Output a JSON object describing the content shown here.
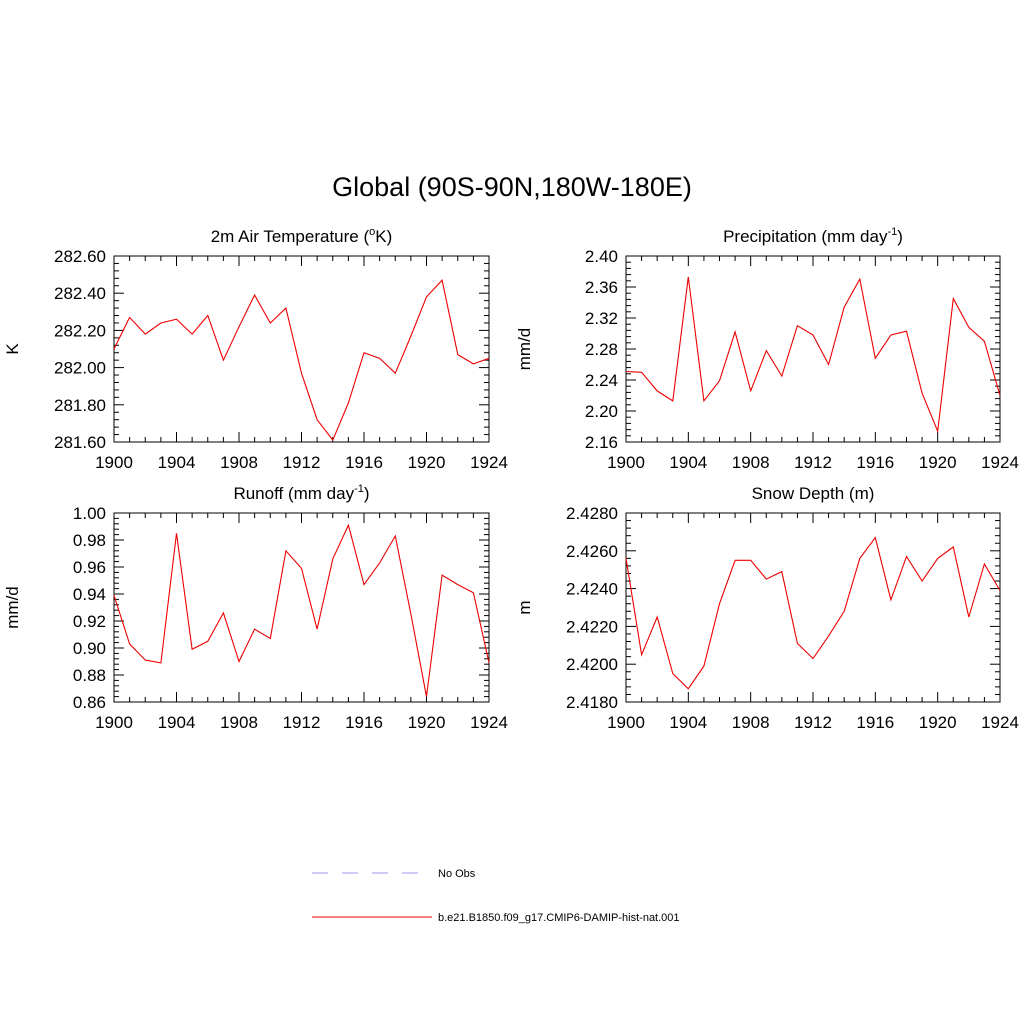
{
  "title": "Global (90S-90N,180W-180E)",
  "legend": [
    {
      "label": "No Obs",
      "color": "#9999ee",
      "dash": true
    },
    {
      "label": "b.e21.B1850.f09_g17.CMIP6-DAMIP-hist-nat.001",
      "color": "#ee0000",
      "dash": false
    }
  ],
  "chart_data": [
    {
      "type": "line",
      "title_main": "2m Air Temperature (",
      "title_sup": "o",
      "title_after": "K)",
      "ylabel": "K",
      "xlim": [
        1900,
        1924
      ],
      "ylim": [
        281.6,
        282.6
      ],
      "xticks": [
        1900,
        1904,
        1908,
        1912,
        1916,
        1920,
        1924
      ],
      "yticks": [
        "281.60",
        "281.80",
        "282.00",
        "282.20",
        "282.40",
        "282.60"
      ],
      "series": [
        {
          "color": "#ee0000",
          "x": [
            1900,
            1901,
            1902,
            1903,
            1904,
            1905,
            1906,
            1907,
            1908,
            1909,
            1910,
            1911,
            1912,
            1913,
            1914,
            1915,
            1916,
            1917,
            1918,
            1919,
            1920,
            1921,
            1922,
            1923,
            1924
          ],
          "values": [
            282.1,
            282.27,
            282.18,
            282.24,
            282.26,
            282.18,
            282.28,
            282.04,
            282.22,
            282.39,
            282.24,
            282.32,
            281.97,
            281.72,
            281.61,
            281.81,
            282.08,
            282.05,
            281.97,
            282.17,
            282.38,
            282.47,
            282.07,
            282.02,
            282.05
          ]
        }
      ]
    },
    {
      "type": "line",
      "title_main": "Precipitation (mm day",
      "title_sup": "-1",
      "title_after": ")",
      "ylabel": "mm/d",
      "xlim": [
        1900,
        1924
      ],
      "ylim": [
        2.16,
        2.4
      ],
      "xticks": [
        1900,
        1904,
        1908,
        1912,
        1916,
        1920,
        1924
      ],
      "yticks": [
        "2.16",
        "2.20",
        "2.24",
        "2.28",
        "2.32",
        "2.36",
        "2.40"
      ],
      "series": [
        {
          "color": "#ee0000",
          "x": [
            1900,
            1901,
            1902,
            1903,
            1904,
            1905,
            1906,
            1907,
            1908,
            1909,
            1910,
            1911,
            1912,
            1913,
            1914,
            1915,
            1916,
            1917,
            1918,
            1919,
            1920,
            1921,
            1922,
            1923,
            1924
          ],
          "values": [
            2.251,
            2.25,
            2.226,
            2.213,
            2.373,
            2.213,
            2.239,
            2.302,
            2.226,
            2.278,
            2.245,
            2.31,
            2.298,
            2.26,
            2.334,
            2.37,
            2.268,
            2.298,
            2.303,
            2.223,
            2.174,
            2.345,
            2.308,
            2.29,
            2.22
          ]
        }
      ]
    },
    {
      "type": "line",
      "title_main": "Runoff (mm day",
      "title_sup": "-1",
      "title_after": ")",
      "ylabel": "mm/d",
      "xlim": [
        1900,
        1924
      ],
      "ylim": [
        0.86,
        1.0
      ],
      "xticks": [
        1900,
        1904,
        1908,
        1912,
        1916,
        1920,
        1924
      ],
      "yticks": [
        "0.86",
        "0.88",
        "0.90",
        "0.92",
        "0.94",
        "0.96",
        "0.98",
        "1.00"
      ],
      "series": [
        {
          "color": "#ee0000",
          "x": [
            1900,
            1901,
            1902,
            1903,
            1904,
            1905,
            1906,
            1907,
            1908,
            1909,
            1910,
            1911,
            1912,
            1913,
            1914,
            1915,
            1916,
            1917,
            1918,
            1919,
            1920,
            1921,
            1922,
            1923,
            1924
          ],
          "values": [
            0.939,
            0.903,
            0.891,
            0.889,
            0.985,
            0.899,
            0.905,
            0.926,
            0.89,
            0.914,
            0.907,
            0.972,
            0.959,
            0.914,
            0.966,
            0.991,
            0.947,
            0.963,
            0.983,
            0.925,
            0.864,
            0.954,
            0.947,
            0.941,
            0.889
          ]
        }
      ]
    },
    {
      "type": "line",
      "title_main": "Snow Depth (m)",
      "title_sup": "",
      "title_after": "",
      "ylabel": "m",
      "xlim": [
        1900,
        1924
      ],
      "ylim": [
        2.418,
        2.428
      ],
      "xticks": [
        1900,
        1904,
        1908,
        1912,
        1916,
        1920,
        1924
      ],
      "yticks": [
        "2.4180",
        "2.4200",
        "2.4220",
        "2.4240",
        "2.4260",
        "2.4280"
      ],
      "series": [
        {
          "color": "#ee0000",
          "x": [
            1900,
            1901,
            1902,
            1903,
            1904,
            1905,
            1906,
            1907,
            1908,
            1909,
            1910,
            1911,
            1912,
            1913,
            1914,
            1915,
            1916,
            1917,
            1918,
            1919,
            1920,
            1921,
            1922,
            1923,
            1924
          ],
          "values": [
            2.4256,
            2.4205,
            2.4225,
            2.4195,
            2.4187,
            2.4199,
            2.4232,
            2.4255,
            2.4255,
            2.4245,
            2.4249,
            2.4211,
            2.4203,
            2.4215,
            2.4228,
            2.4256,
            2.4267,
            2.4234,
            2.4257,
            2.4244,
            2.4256,
            2.4262,
            2.4225,
            2.4253,
            2.4239
          ]
        }
      ]
    }
  ]
}
